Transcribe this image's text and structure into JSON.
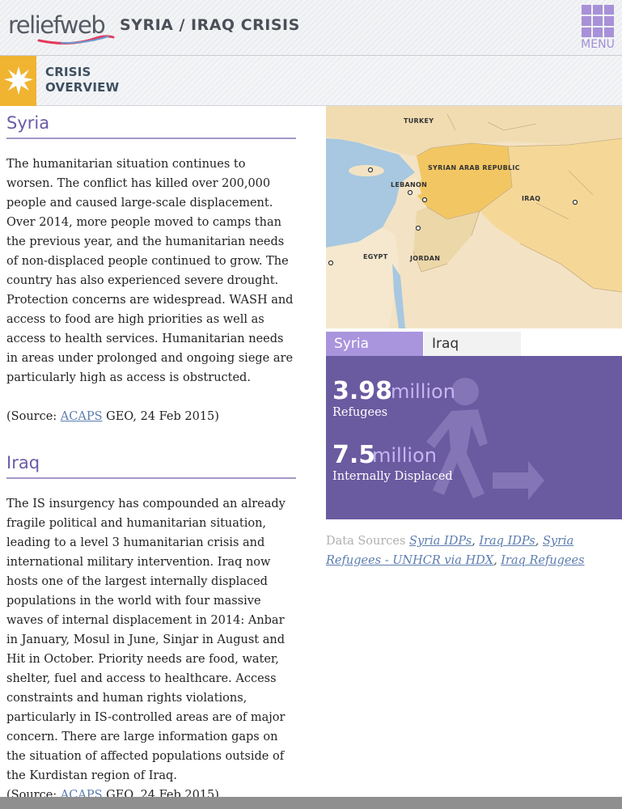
{
  "header": {
    "logo_text": "reliefweb",
    "title": "SYRIA / IRAQ CRISIS",
    "menu_label": "MENU"
  },
  "overview": {
    "label_line1": "CRISIS",
    "label_line2": "OVERVIEW",
    "icon": "starburst-icon"
  },
  "syria": {
    "heading": "Syria",
    "body": "The humanitarian situation continues to worsen. The conflict has killed over 200,000 people and caused large-scale displacement. Over 2014, more people moved to camps than the previous year, and the humanitarian needs of non-displaced people continued to grow. The country has also experienced severe drought. Protection concerns are widespread. WASH and access to food are high priorities as well as access to health services. Humanitarian needs in areas under prolonged and ongoing siege are particularly high as access is obstructed.",
    "source_prefix": "(Source: ",
    "source_link": "ACAPS",
    "source_suffix": " GEO, 24 Feb 2015)"
  },
  "iraq": {
    "heading": "Iraq",
    "body": "The IS insurgency has compounded an already fragile political and humanitarian situation, leading to a level 3 humanitarian crisis and international military intervention. Iraq now hosts one of the largest internally displaced populations in the world with four massive waves of internal displacement in 2014: Anbar in January, Mosul in June, Sinjar in August and Hit in October. Priority needs are food, water, shelter, fuel and access to healthcare. Access constraints and human rights violations, particularly in IS-controlled areas are of major concern. There are large information gaps on the situation of affected populations outside of the Kurdistan region of Iraq.",
    "source_prefix": "(Source: ",
    "source_link": "ACAPS",
    "source_suffix": " GEO, 24 Feb 2015)"
  },
  "map": {
    "labels": {
      "turkey": "TURKEY",
      "syria": "SYRIAN ARAB REPUBLIC",
      "lebanon": "LEBANON",
      "iraq": "IRAQ",
      "egypt": "EGYPT",
      "jordan": "JORDAN"
    },
    "colors": {
      "sea": "#a7c8e0",
      "land": "#f3e3c4",
      "syria": "#f2c763",
      "iraq": "#f5d898"
    }
  },
  "tabs": [
    {
      "label": "Syria",
      "active": true
    },
    {
      "label": "Iraq",
      "active": false
    }
  ],
  "stats": {
    "refugees_value": "3.98",
    "refugees_unit": "million",
    "refugees_label": "Refugees",
    "idp_value": "7.5",
    "idp_unit": "million",
    "idp_label": "Internally Displaced",
    "background_color": "#6a5aa0"
  },
  "data_sources": {
    "label": "Data Sources",
    "links": [
      "Syria IDPs",
      "Iraq IDPs",
      "Syria Refugees - UNHCR via HDX",
      "Iraq Refugees"
    ]
  }
}
